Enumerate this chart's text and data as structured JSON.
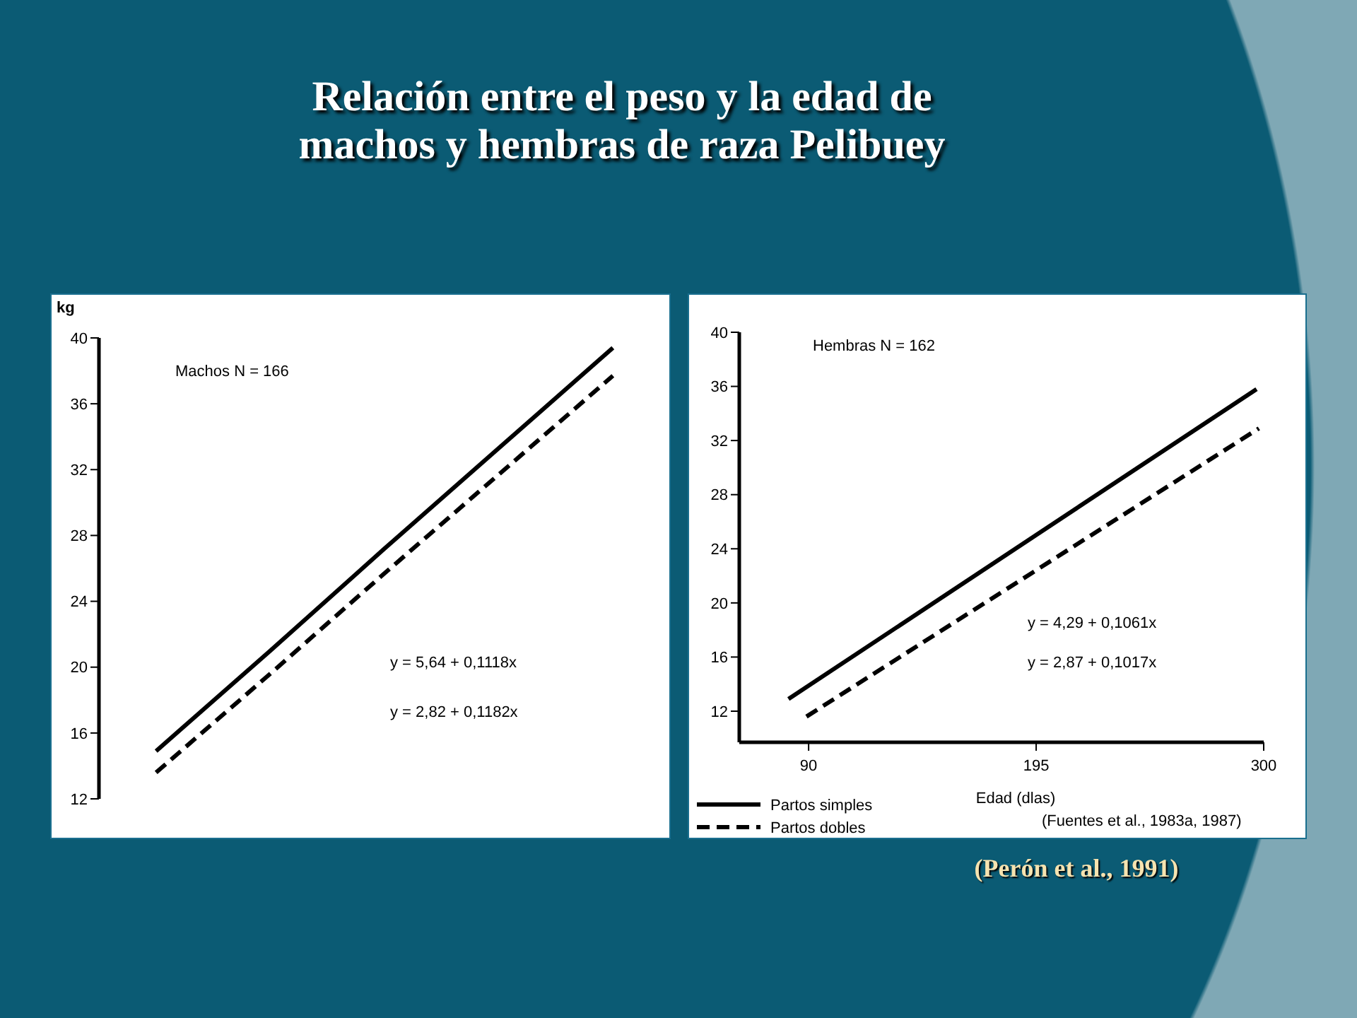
{
  "chart_data": [
    {
      "type": "line",
      "title": "Relación entre el peso y la edad de machos y hembras de raza Pelibuey",
      "ylabel": "kg",
      "categories": [
        null,
        null,
        null,
        null,
        null
      ],
      "ylim": [
        12,
        40
      ],
      "yticks": [
        12,
        16,
        20,
        24,
        28,
        32,
        36,
        40
      ],
      "tick_labels": "y",
      "annotations": [
        "Machos N = 166",
        "y = 5,64 + 0,1118x",
        "y = 2,82 + 0,1182x"
      ],
      "series": [
        {
          "color": "#000000",
          "line_style": "solid",
          "values": [
            14.9,
            21.0,
            27.2,
            33.3,
            39.4
          ]
        },
        {
          "color": "#000000",
          "line_style": "dashed",
          "values": [
            13.6,
            19.6,
            25.7,
            31.7,
            37.7
          ]
        }
      ]
    },
    {
      "type": "line",
      "xlabel": "Edad (dlas)",
      "xlim": [
        58,
        300
      ],
      "xticks": [
        90,
        195,
        300
      ],
      "ylim": [
        9.7,
        40
      ],
      "yticks": [
        12,
        16,
        20,
        24,
        28,
        32,
        36,
        40
      ],
      "legend": "bottom left",
      "annotations": [
        "Hembras N = 162",
        "y = 4,29 + 0,1061x",
        "y = 2,87 + 0,1017x",
        "(Fuentes et al., 1983a, 1987)",
        "(Perón et al., 1991)"
      ],
      "series": [
        {
          "name": "Partos simples",
          "color": "#000000",
          "line_style": "solid",
          "x": [
            80.7,
            296.7
          ],
          "values": [
            12.9,
            35.8
          ]
        },
        {
          "name": "Partos dobles",
          "color": "#000000",
          "line_style": "dashed",
          "x": [
            89,
            297.8
          ],
          "values": [
            11.6,
            32.9
          ]
        }
      ]
    }
  ]
}
